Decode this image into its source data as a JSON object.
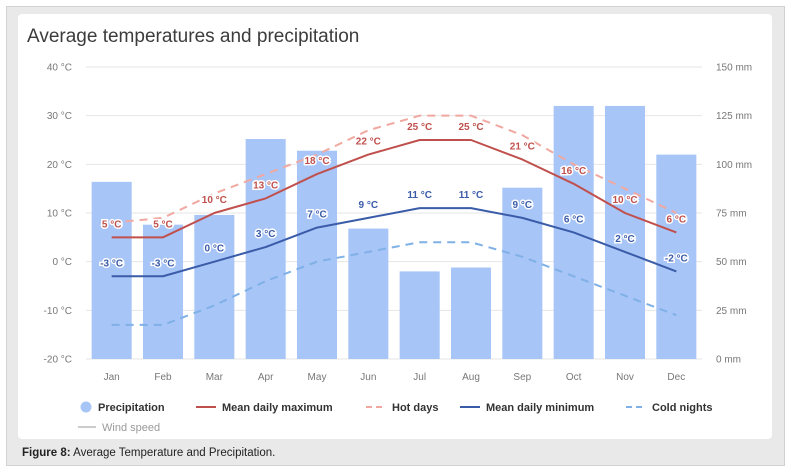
{
  "figure": {
    "caption_label": "Figure 8:",
    "caption_text": "Average Temperature and Precipitation."
  },
  "chart_data": {
    "type": "bar+line",
    "title": "Average temperatures and precipitation",
    "categories": [
      "Jan",
      "Feb",
      "Mar",
      "Apr",
      "May",
      "Jun",
      "Jul",
      "Aug",
      "Sep",
      "Oct",
      "Nov",
      "Dec"
    ],
    "y_left": {
      "ticks": [
        "40 °C",
        "30 °C",
        "20 °C",
        "10 °C",
        "0 °C",
        "-10 °C",
        "-20 °C"
      ],
      "range": [
        -20,
        40
      ]
    },
    "y_right": {
      "ticks": [
        "150 mm",
        "125 mm",
        "100 mm",
        "75 mm",
        "50 mm",
        "25 mm",
        "0 mm"
      ],
      "range": [
        0,
        150
      ]
    },
    "bars": {
      "name": "Precipitation",
      "color": "#a8c5f7",
      "values": [
        91,
        69,
        74,
        113,
        107,
        67,
        45,
        47,
        88,
        130,
        130,
        105
      ]
    },
    "series": [
      {
        "name": "Mean daily maximum",
        "color": "#c0504d",
        "style": "solid",
        "values": [
          5,
          5,
          10,
          13,
          18,
          22,
          25,
          25,
          21,
          16,
          10,
          6
        ],
        "labels": [
          "5 °C",
          "5 °C",
          "10 °C",
          "13 °C",
          "18 °C",
          "22 °C",
          "25 °C",
          "25 °C",
          "21 °C",
          "16 °C",
          "10 °C",
          "6 °C"
        ]
      },
      {
        "name": "Hot days",
        "color": "#f0a8a0",
        "style": "dashed",
        "values": [
          8,
          9,
          14,
          18,
          22,
          27,
          30,
          30,
          26,
          20,
          15,
          10
        ]
      },
      {
        "name": "Mean daily minimum",
        "color": "#3a5ca8",
        "style": "solid",
        "values": [
          -3,
          -3,
          0,
          3,
          7,
          9,
          11,
          11,
          9,
          6,
          2,
          -2
        ],
        "labels": [
          "-3 °C",
          "-3 °C",
          "0 °C",
          "3 °C",
          "7 °C",
          "9 °C",
          "11 °C",
          "11 °C",
          "9 °C",
          "6 °C",
          "2 °C",
          "-2 °C"
        ]
      },
      {
        "name": "Cold nights",
        "color": "#7fb0e6",
        "style": "dashed",
        "values": [
          -13,
          -13,
          -9,
          -4,
          0,
          2,
          4,
          4,
          1,
          -3,
          -7,
          -11
        ]
      }
    ],
    "legend": {
      "position": "bottom",
      "items": [
        "Precipitation",
        "Mean daily maximum",
        "Hot days",
        "Mean daily minimum",
        "Cold nights",
        "Wind speed"
      ]
    },
    "grid": true
  }
}
